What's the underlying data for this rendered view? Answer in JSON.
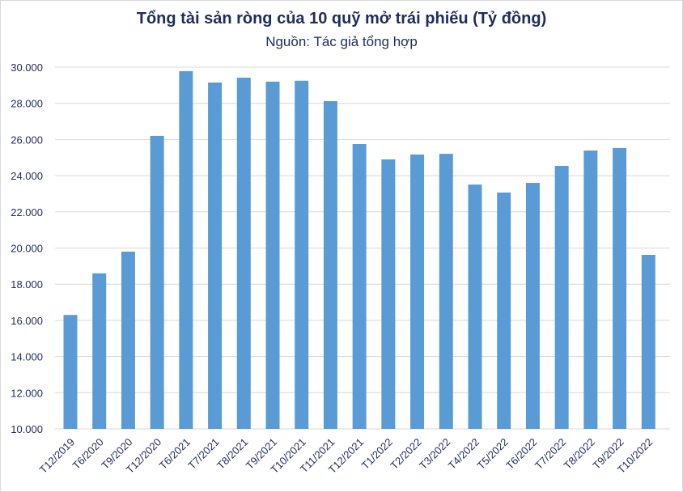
{
  "chart_data": {
    "type": "bar",
    "title": "Tổng tài sản ròng của 10 quỹ mở trái phiếu (Tỷ đồng)",
    "subtitle": "Nguồn: Tác giả tổng hợp",
    "xlabel": "",
    "ylabel": "",
    "ylim": [
      10000,
      30000
    ],
    "yticks": [
      10000,
      12000,
      14000,
      16000,
      18000,
      20000,
      22000,
      24000,
      26000,
      28000,
      30000
    ],
    "ytick_labels": [
      "10.000",
      "12.000",
      "14.000",
      "16.000",
      "18.000",
      "20.000",
      "22.000",
      "24.000",
      "26.000",
      "28.000",
      "30.000"
    ],
    "grid": true,
    "legend": null,
    "bar_color": "#5b9bd5",
    "categories": [
      "T12/2019",
      "T6/2020",
      "T9/2020",
      "T12/2020",
      "T6/2021",
      "T7/2021",
      "T8/2021",
      "T9/2021",
      "T10/2021",
      "T11/2021",
      "T12/2021",
      "T1/2022",
      "T2/2022",
      "T3/2022",
      "T4/2022",
      "T5/2022",
      "T6/2022",
      "T7/2022",
      "T8/2022",
      "T9/2022",
      "T10/2022"
    ],
    "values": [
      16300,
      18600,
      19800,
      26200,
      29780,
      29150,
      29420,
      29200,
      29250,
      28120,
      25750,
      24900,
      25170,
      25210,
      23510,
      23070,
      23600,
      24540,
      25390,
      25530,
      19620
    ]
  }
}
